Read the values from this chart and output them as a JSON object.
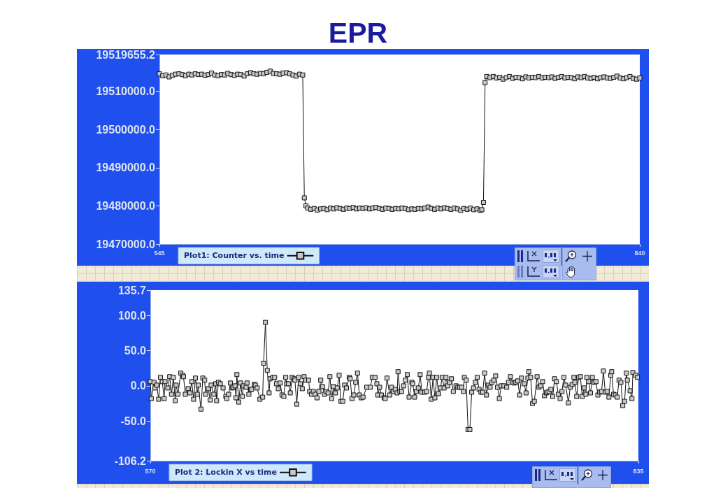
{
  "chart_data": [
    {
      "type": "line",
      "title": "EPR",
      "marker": "square",
      "line_style": "solid",
      "legend": "bottom left",
      "xlim": [
        545,
        840
      ],
      "xticks": [
        545,
        840
      ],
      "ylim": [
        19470000,
        19519655.2
      ],
      "yticks": [
        {
          "value": 19470000,
          "label": "19470000.0"
        },
        {
          "value": 19480000,
          "label": "19480000.0"
        },
        {
          "value": 19490000,
          "label": "19490000.0"
        },
        {
          "value": 19500000,
          "label": "19500000.0"
        },
        {
          "value": 19510000,
          "label": "19510000.0"
        },
        19519655.2
      ],
      "x": [
        545,
        547,
        549,
        551,
        553,
        555,
        557,
        559,
        561,
        563,
        565,
        567,
        569,
        571,
        573,
        575,
        577,
        579,
        581,
        583,
        585,
        587,
        589,
        591,
        593,
        595,
        597,
        599,
        601,
        603,
        605,
        607,
        609,
        611,
        613,
        615,
        617,
        619,
        621,
        623,
        625,
        627,
        629,
        631,
        633,
        634,
        635,
        636,
        638,
        640,
        642,
        644,
        646,
        648,
        650,
        652,
        654,
        656,
        658,
        660,
        662,
        664,
        666,
        668,
        670,
        672,
        674,
        676,
        678,
        680,
        682,
        684,
        686,
        688,
        690,
        692,
        694,
        696,
        698,
        700,
        702,
        704,
        706,
        708,
        710,
        712,
        714,
        716,
        718,
        720,
        722,
        724,
        726,
        728,
        730,
        732,
        734,
        736,
        738,
        740,
        742,
        743,
        744,
        745,
        746,
        748,
        750,
        752,
        754,
        756,
        758,
        760,
        762,
        764,
        766,
        768,
        770,
        772,
        774,
        776,
        778,
        780,
        782,
        784,
        786,
        788,
        790,
        792,
        794,
        796,
        798,
        800,
        802,
        804,
        806,
        808,
        810,
        812,
        814,
        816,
        818,
        820,
        822,
        824,
        826,
        828,
        830,
        832,
        834,
        836,
        838,
        840
      ],
      "series": [
        {
          "name": "Plot1: Counter vs. time",
          "color": "#111111",
          "values": [
            19514600,
            19514100,
            19514300,
            19513800,
            19514200,
            19514500,
            19514600,
            19514400,
            19514100,
            19514500,
            19514300,
            19514600,
            19514400,
            19514500,
            19514200,
            19514400,
            19514800,
            19514300,
            19514100,
            19514400,
            19514300,
            19514700,
            19514400,
            19514200,
            19514500,
            19514400,
            19514000,
            19514600,
            19514900,
            19514600,
            19514500,
            19514700,
            19514600,
            19515000,
            19515300,
            19514700,
            19514600,
            19514500,
            19514800,
            19514900,
            19514600,
            19514300,
            19514000,
            19514500,
            19514300,
            19482100,
            19480000,
            19479400,
            19479100,
            19479300,
            19478900,
            19479200,
            19479300,
            19479000,
            19479400,
            19479200,
            19479500,
            19479300,
            19479100,
            19479400,
            19479300,
            19479600,
            19479200,
            19479400,
            19479300,
            19479500,
            19479200,
            19479400,
            19479600,
            19479300,
            19479100,
            19479400,
            19479300,
            19479100,
            19479300,
            19479200,
            19479400,
            19479300,
            19479000,
            19479200,
            19479100,
            19479300,
            19479200,
            19479400,
            19479700,
            19479300,
            19479100,
            19479400,
            19479200,
            19479500,
            19479300,
            19479100,
            19479400,
            19479200,
            19478800,
            19479300,
            19479100,
            19479400,
            19479000,
            19479200,
            19478800,
            19479000,
            19480900,
            19512300,
            19513900,
            19513600,
            19513900,
            19513500,
            19513700,
            19513200,
            19513600,
            19513900,
            19513400,
            19513700,
            19513600,
            19513300,
            19513800,
            19513500,
            19513700,
            19513600,
            19513900,
            19513500,
            19513700,
            19513600,
            19513800,
            19513400,
            19513700,
            19513900,
            19513500,
            19513700,
            19513600,
            19513300,
            19513800,
            19513600,
            19513900,
            19513500,
            19513400,
            19513700,
            19513300,
            19513600,
            19513800,
            19513500,
            19513400,
            19513700,
            19514000,
            19513500,
            19513300,
            19513600,
            19513900,
            19513400,
            19513200,
            19513500
          ]
        }
      ]
    },
    {
      "type": "line",
      "marker": "square",
      "line_style": "solid",
      "legend": "bottom left",
      "xlim": [
        570,
        835
      ],
      "xticks": [
        570,
        835
      ],
      "ylim": [
        -106.2,
        135.7
      ],
      "yticks": [
        -106.2,
        {
          "value": -50,
          "label": "-50.0"
        },
        {
          "value": 0,
          "label": "0.0"
        },
        {
          "value": 50,
          "label": "50.0"
        },
        {
          "value": 100,
          "label": "100.0"
        },
        135.7
      ],
      "x": [
        570,
        570.5,
        572,
        572.5,
        573.5,
        574.5,
        575.5,
        576.5,
        577.5,
        578,
        579.5,
        580.5,
        581.5,
        582.5,
        583.5,
        584,
        585,
        586.5,
        587.5,
        588,
        589,
        590.5,
        591.5,
        592.5,
        593.5,
        594.5,
        595.5,
        596,
        597.5,
        598.5,
        599.5,
        600,
        601.5,
        602.5,
        603,
        604.5,
        605.5,
        606,
        607,
        608,
        609.5,
        611,
        611.5,
        612.5,
        613.5,
        614.5,
        615,
        616,
        616.5,
        617,
        618,
        619,
        620,
        620.5,
        622,
        622.5,
        623.5,
        624.5,
        625,
        626.5,
        627,
        628,
        629.5,
        631,
        631.5,
        632.5,
        633.5,
        634.5,
        635,
        636.5,
        637.5,
        638.5,
        639.5,
        640.5,
        641.5,
        642.5,
        643.5,
        644,
        645,
        646,
        647,
        648,
        648.5,
        649.5,
        650.5,
        651.5,
        652.5,
        653.5,
        654.5,
        656,
        656.5,
        657.5,
        658.5,
        659.5,
        660.5,
        661.5,
        662.5,
        663.5,
        664.5,
        665.5,
        666.5,
        667.5,
        668.5,
        669.5,
        670.5,
        671.5,
        672.5,
        673.5,
        674.5,
        675.5,
        676.5,
        678,
        678.5,
        679.5,
        680.5,
        681.5,
        682.5,
        683.5,
        684.5,
        685.5,
        687.5,
        689.5,
        690.5,
        692,
        693,
        693.5,
        694.5,
        695.5,
        697,
        697.5,
        698.5,
        700,
        701,
        702,
        703,
        704,
        704.5,
        705.5,
        706.5,
        707.5,
        708.5,
        709.5,
        710.5,
        712,
        712.5,
        713.5,
        714.5,
        715.5,
        716.5,
        717.5,
        719,
        720,
        721,
        721.5,
        722.5,
        723.5,
        724.5,
        725.5,
        726.5,
        727.5,
        728.5,
        729.5,
        730.5,
        731.5,
        732.5,
        733.5,
        734.5,
        736,
        737,
        738,
        739,
        740,
        740.5,
        741.5,
        742.5,
        743.5,
        744.5,
        745.5,
        746.5,
        747.5,
        748.5,
        749.5,
        750.5,
        751.5,
        752.5,
        753.5,
        754.5,
        755.5,
        756.5,
        757.5,
        758.5,
        759.5,
        760.5,
        762,
        763.5,
        764.5,
        765.5,
        766.5,
        767.5,
        768.5,
        769.5,
        770.5,
        771.5,
        773,
        774,
        775,
        775.5,
        776.5,
        777.5,
        778.5,
        780,
        781,
        782,
        783,
        784,
        785,
        785.5,
        786.5,
        787.5,
        788.5,
        789.5,
        790.5,
        791.5,
        792.5,
        793.5,
        794.5,
        795.5,
        797,
        798,
        799,
        800,
        800.5,
        801.5,
        802.5,
        803.5,
        804.5,
        805.5,
        806.5,
        807,
        808,
        809,
        810,
        811,
        812,
        813,
        814,
        815,
        816,
        817,
        818,
        819,
        820,
        820.5,
        821.5,
        822.5,
        823.5,
        824.5,
        825.5,
        826.5,
        827.5,
        828.5,
        829,
        830.5,
        831.5,
        832,
        833.5,
        834.5
      ],
      "series": [
        {
          "name": "Plot 2: Lockin X vs time",
          "color": "#111111",
          "values": [
            6,
            -18,
            5,
            -3,
            1,
            -19,
            12,
            6,
            -18,
            6,
            -3,
            13,
            -12,
            12,
            -21,
            1,
            -12,
            18,
            15,
            13,
            -12,
            -4,
            -10,
            6,
            -19,
            11,
            -12,
            1,
            -33,
            11,
            8,
            -12,
            -4,
            -20,
            1,
            -12,
            3,
            -21,
            5,
            3,
            -3,
            -15,
            -18,
            -12,
            4,
            -3,
            -2,
            0,
            -17,
            16,
            -23,
            4,
            -15,
            0,
            -2,
            4,
            -12,
            -5,
            -5,
            2,
            1,
            -3,
            -19,
            -16,
            32,
            90,
            22,
            -10,
            10,
            12,
            12,
            3,
            -4,
            4,
            -13,
            -15,
            12,
            3,
            3,
            -10,
            12,
            10,
            8,
            -26,
            12,
            3,
            -4,
            13,
            8,
            8,
            -8,
            -12,
            -8,
            -12,
            -17,
            -8,
            8,
            -1,
            -12,
            -8,
            -10,
            13,
            -18,
            -1,
            -10,
            -3,
            15,
            -22,
            -22,
            1,
            -3,
            12,
            10,
            -18,
            -13,
            5,
            18,
            -13,
            -17,
            -16,
            -2,
            -2,
            12,
            12,
            3,
            -13,
            -2,
            -13,
            -17,
            -18,
            11,
            -13,
            -2,
            -8,
            -5,
            -10,
            20,
            -8,
            -8,
            0,
            8,
            16,
            -16,
            5,
            3,
            -16,
            -8,
            -3,
            16,
            -9,
            -9,
            -8,
            12,
            18,
            -19,
            12,
            -17,
            12,
            -11,
            -3,
            12,
            -3,
            12,
            0,
            5,
            10,
            -8,
            0,
            -2,
            -2,
            -2,
            -8,
            12,
            8,
            -62,
            -62,
            -9,
            -3,
            5,
            12,
            -5,
            -9,
            -9,
            18,
            -13,
            1,
            -2,
            5,
            8,
            14,
            -2,
            -18,
            0,
            0,
            -2,
            5,
            13,
            5,
            4,
            5,
            7,
            -13,
            11,
            3,
            -10,
            11,
            20,
            12,
            -25,
            -22,
            13,
            -2,
            0,
            6,
            -14,
            -10,
            -9,
            -8,
            -5,
            -15,
            10,
            6,
            -12,
            -18,
            -8,
            12,
            1,
            -24,
            -2,
            2,
            12,
            5,
            -15,
            12,
            13,
            -15,
            -3,
            -12,
            12,
            6,
            -10,
            12,
            5,
            6,
            -13,
            -9,
            -8,
            21,
            -9,
            -8,
            -16,
            15,
            20,
            -12,
            -13,
            -16,
            8,
            5,
            -28,
            -22,
            18,
            8,
            -7,
            -18,
            19,
            15,
            12
          ]
        }
      ]
    }
  ]
}
